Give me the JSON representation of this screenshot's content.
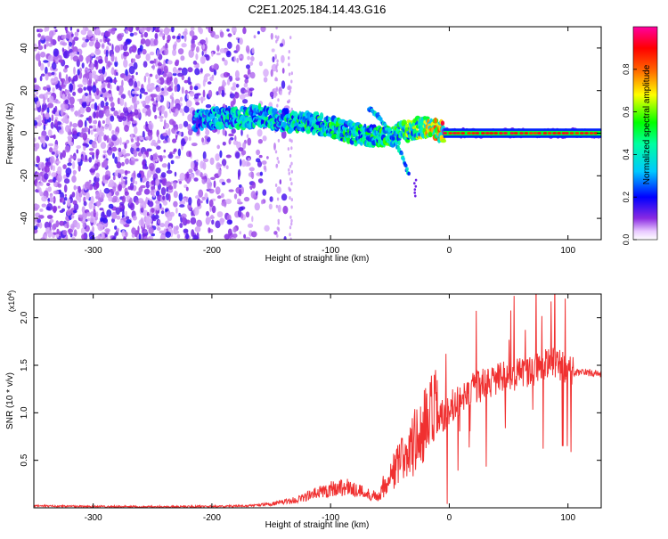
{
  "title": "C2E1.2025.184.14.43.G16",
  "chart_data": [
    {
      "type": "heatmap",
      "name": "spectrogram",
      "xlabel": "Height of straight line (km)",
      "ylabel": "Frequency (Hz)",
      "xlim": [
        -350,
        128
      ],
      "ylim": [
        -50,
        50
      ],
      "x_ticks": [
        "-300",
        "-200",
        "-100",
        "0",
        "100"
      ],
      "x_tick_values": [
        -300,
        -200,
        -100,
        0,
        100
      ],
      "y_ticks": [
        "-40",
        "-20",
        "0",
        "20",
        "40"
      ],
      "y_tick_values": [
        -40,
        -20,
        0,
        20,
        40
      ],
      "colorbar": {
        "label": "Normalized spectral amplitude",
        "range": [
          0.0,
          1.0
        ],
        "ticks": [
          "0.0",
          "0.2",
          "0.4",
          "0.6",
          "0.8"
        ],
        "tick_values": [
          0.0,
          0.2,
          0.4,
          0.6,
          0.8
        ],
        "colormap": "rainbow (magenta-blue-cyan-green-yellow-red-magenta)"
      },
      "features": {
        "noise_region_x": [
          -350,
          -140
        ],
        "noise_amplitude": 0.15,
        "signal_track": {
          "x": [
            -215,
            -200,
            -180,
            -160,
            -140,
            -120,
            -100,
            -80,
            -60,
            -40,
            -30,
            -20,
            0,
            50,
            100,
            128
          ],
          "frequency": [
            6,
            7,
            7,
            8,
            6,
            5,
            3,
            0,
            -2,
            0,
            2,
            3,
            0,
            0,
            0,
            0
          ],
          "amplitude": [
            0.3,
            0.35,
            0.4,
            0.4,
            0.4,
            0.45,
            0.45,
            0.45,
            0.45,
            0.5,
            0.55,
            0.6,
            0.8,
            0.9,
            0.9,
            0.9
          ]
        },
        "secondary_branch": {
          "x": [
            -68,
            -60,
            -50,
            -40,
            -34
          ],
          "frequency": [
            12,
            8,
            0,
            -10,
            -20
          ]
        }
      }
    },
    {
      "type": "line",
      "name": "snr",
      "xlabel": "Height of straight line (km)",
      "ylabel": "SNR (10 * v/v)",
      "y_multiplier": "(x10^4)",
      "xlim": [
        -350,
        128
      ],
      "ylim": [
        0,
        2.25
      ],
      "x_ticks": [
        "-300",
        "-200",
        "-100",
        "0",
        "100"
      ],
      "x_tick_values": [
        -300,
        -200,
        -100,
        0,
        100
      ],
      "y_ticks": [
        "0.5",
        "1.0",
        "1.5",
        "2.0"
      ],
      "y_tick_values": [
        0.5,
        1.0,
        1.5,
        2.0
      ],
      "color": "#f03030",
      "series": [
        {
          "x": [
            -350,
            -300,
            -250,
            -200,
            -170,
            -150,
            -130,
            -115,
            -100,
            -90,
            -80,
            -70,
            -60,
            -50,
            -40,
            -30,
            -20,
            -10,
            0,
            10,
            20,
            30,
            40,
            50,
            60,
            70,
            80,
            90,
            95,
            100,
            105,
            110,
            120,
            128
          ],
          "values": [
            0.02,
            0.015,
            0.01,
            0.015,
            0.02,
            0.04,
            0.08,
            0.14,
            0.2,
            0.22,
            0.2,
            0.15,
            0.12,
            0.3,
            0.45,
            0.6,
            0.75,
            0.9,
            1.05,
            1.15,
            1.25,
            1.3,
            1.35,
            1.38,
            1.42,
            1.45,
            1.5,
            1.55,
            1.5,
            1.45,
            1.42,
            1.43,
            1.42,
            1.4
          ]
        }
      ]
    }
  ]
}
